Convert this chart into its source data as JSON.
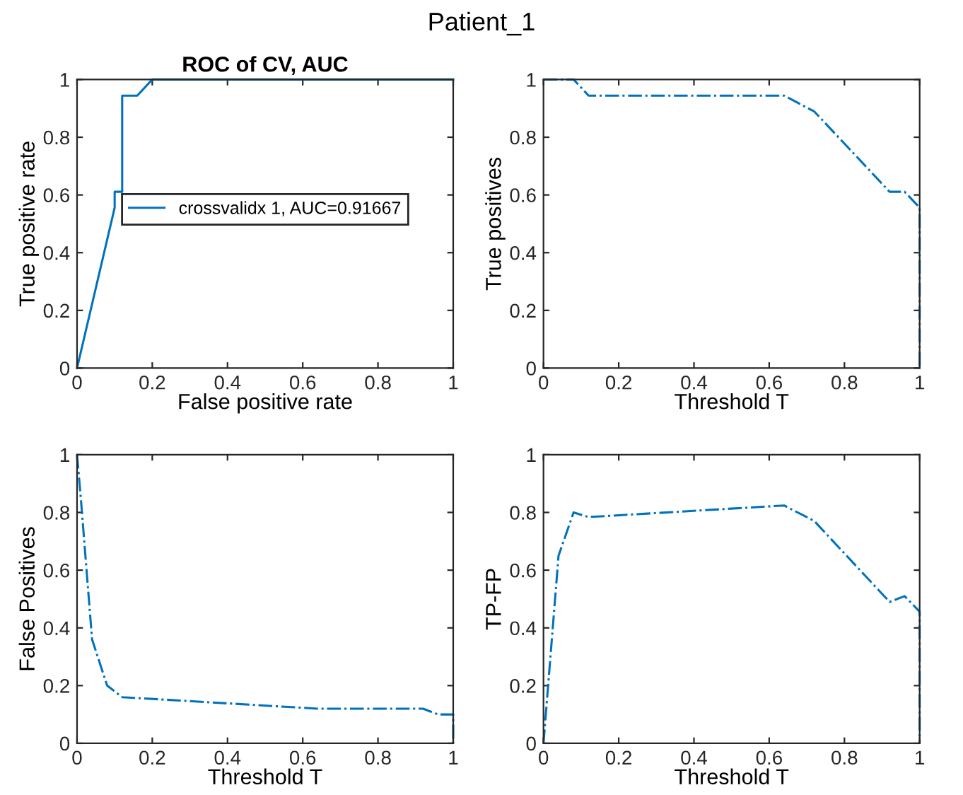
{
  "chart_data": [
    {
      "type": "line",
      "title": "ROC of CV, AUC",
      "xlabel": "False positive rate",
      "ylabel": "True positive rate",
      "annotations": [
        "Patient_1"
      ],
      "legend": "center",
      "line_style": "solid",
      "xlim": [
        0,
        1
      ],
      "ylim": [
        0,
        1
      ],
      "xticks": [
        0,
        0.2,
        0.4,
        0.6,
        0.8,
        1
      ],
      "yticks": [
        0,
        0.2,
        0.4,
        0.6,
        0.8,
        1
      ],
      "series": [
        {
          "name": "crossvalidx 1, AUC=0.91667",
          "color": "#0072bd",
          "x": [
            0,
            0.1,
            0.1,
            0.12,
            0.12,
            0.16,
            0.2,
            1
          ],
          "values": [
            0,
            0.556,
            0.611,
            0.611,
            0.944,
            0.944,
            1,
            1
          ]
        }
      ]
    },
    {
      "type": "line",
      "xlabel": "Threshold T",
      "ylabel": "True positives",
      "line_style": "dashdot",
      "xlim": [
        0,
        1
      ],
      "ylim": [
        0,
        1
      ],
      "xticks": [
        0,
        0.2,
        0.4,
        0.6,
        0.8,
        1
      ],
      "yticks": [
        0,
        0.2,
        0.4,
        0.6,
        0.8,
        1
      ],
      "series": [
        {
          "color": "#0072bd",
          "x": [
            0,
            0.08,
            0.12,
            0.64,
            0.72,
            0.8,
            0.92,
            0.96,
            1,
            1
          ],
          "values": [
            1,
            1,
            0.944,
            0.944,
            0.889,
            0.778,
            0.611,
            0.611,
            0.556,
            0
          ]
        }
      ]
    },
    {
      "type": "line",
      "xlabel": "Threshold T",
      "ylabel": "False Positives",
      "line_style": "dashdot",
      "xlim": [
        0,
        1
      ],
      "ylim": [
        0,
        1
      ],
      "xticks": [
        0,
        0.2,
        0.4,
        0.6,
        0.8,
        1
      ],
      "yticks": [
        0,
        0.2,
        0.4,
        0.6,
        0.8,
        1
      ],
      "series": [
        {
          "color": "#0072bd",
          "x": [
            0,
            0.01,
            0.04,
            0.08,
            0.12,
            0.64,
            0.92,
            0.96,
            1,
            1
          ],
          "values": [
            1,
            0.85,
            0.36,
            0.2,
            0.16,
            0.12,
            0.12,
            0.1,
            0.1,
            0
          ]
        }
      ]
    },
    {
      "type": "line",
      "xlabel": "Threshold T",
      "ylabel": "TP-FP",
      "line_style": "dashdot",
      "xlim": [
        0,
        1
      ],
      "ylim": [
        0,
        1
      ],
      "xticks": [
        0,
        0.2,
        0.4,
        0.6,
        0.8,
        1
      ],
      "yticks": [
        0,
        0.2,
        0.4,
        0.6,
        0.8,
        1
      ],
      "series": [
        {
          "color": "#0072bd",
          "x": [
            0,
            0.04,
            0.08,
            0.12,
            0.64,
            0.72,
            0.92,
            0.96,
            1,
            1
          ],
          "values": [
            0,
            0.65,
            0.8,
            0.784,
            0.824,
            0.77,
            0.49,
            0.51,
            0.456,
            0
          ]
        }
      ]
    }
  ]
}
